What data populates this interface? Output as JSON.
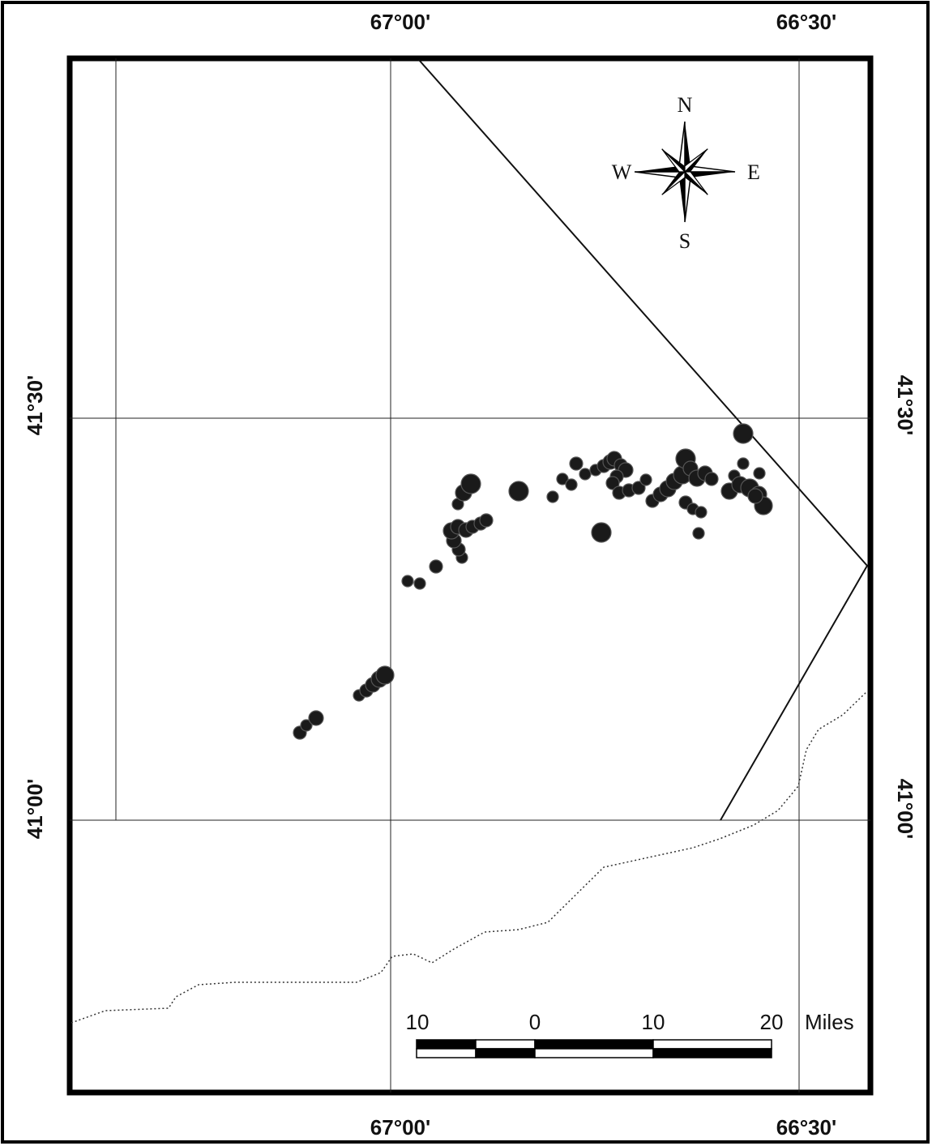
{
  "map": {
    "top_labels": [
      "67°00'",
      "66°30'"
    ],
    "bottom_labels": [
      "67°00'",
      "66°30'"
    ],
    "left_labels": [
      "41°30'",
      "41°00'"
    ],
    "right_labels": [
      "41°30'",
      "41°00'"
    ]
  },
  "compass": {
    "n": "N",
    "s": "S",
    "e": "E",
    "w": "W"
  },
  "scale_bar": {
    "labels": [
      "10",
      "0",
      "10",
      "20"
    ],
    "unit": "Miles"
  },
  "colors": {
    "frame": "#000000",
    "grid": "#222222",
    "points": "#1a1a1a",
    "coastline": "#333333"
  }
}
